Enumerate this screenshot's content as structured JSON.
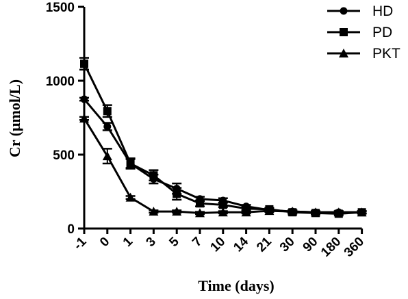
{
  "chart_data": {
    "type": "line",
    "xlabel": "Time (days)",
    "ylabel": "Cr (μmol/L)",
    "categories": [
      "-1",
      "0",
      "1",
      "3",
      "5",
      "7",
      "10",
      "14",
      "21",
      "30",
      "90",
      "180",
      "360"
    ],
    "ylim": [
      0,
      1500
    ],
    "yticks": [
      0,
      500,
      1000,
      1500
    ],
    "grid": false,
    "legend_position": "top-right",
    "series": [
      {
        "name": "HD",
        "marker": "circle",
        "values": [
          875,
          690,
          440,
          335,
          270,
          200,
          190,
          150,
          125,
          115,
          110,
          110,
          110
        ],
        "errors": [
          10,
          25,
          30,
          30,
          35,
          15,
          15,
          10,
          10,
          10,
          8,
          8,
          8
        ]
      },
      {
        "name": "PD",
        "marker": "square",
        "values": [
          1115,
          795,
          440,
          360,
          235,
          170,
          160,
          135,
          130,
          110,
          105,
          100,
          110
        ],
        "errors": [
          40,
          40,
          35,
          35,
          40,
          20,
          15,
          10,
          10,
          10,
          8,
          8,
          8
        ]
      },
      {
        "name": "PKT",
        "marker": "triangle",
        "values": [
          745,
          490,
          210,
          115,
          115,
          105,
          110,
          110,
          120,
          115,
          110,
          110,
          110
        ],
        "errors": [
          10,
          50,
          10,
          8,
          8,
          8,
          8,
          8,
          8,
          8,
          8,
          8,
          8
        ]
      }
    ]
  }
}
